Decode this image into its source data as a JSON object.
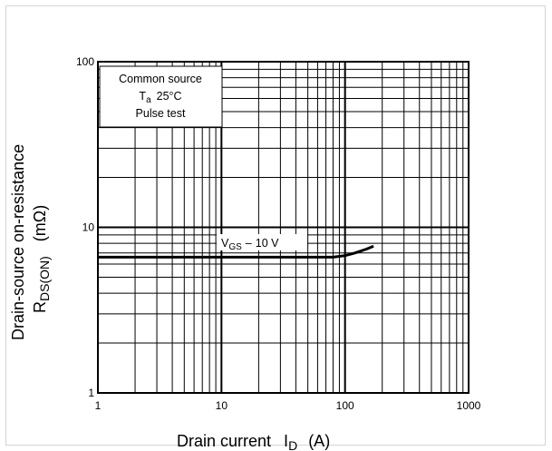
{
  "chart_data": {
    "type": "line",
    "x_scale": "log",
    "y_scale": "log",
    "xlim": [
      1,
      1000
    ],
    "ylim": [
      1,
      100
    ],
    "grid": true,
    "x_ticks": [
      "1",
      "10",
      "100",
      "1000"
    ],
    "y_ticks": [
      "1",
      "10",
      "100"
    ],
    "xlabel": {
      "main": "Drain current",
      "symbol": "I",
      "subscript": "D",
      "unit": "(A)"
    },
    "ylabel": {
      "line1": "Drain-source on-resistance",
      "symbol": "R",
      "subscript": "DS(ON)",
      "unit": "(mΩ)"
    },
    "annotation_box": {
      "line1": "Common source",
      "line2_symbol": "T",
      "line2_sub": "a",
      "line2_value": "25°C",
      "line3": "Pulse test"
    },
    "series": [
      {
        "label_symbol": "V",
        "label_sub": "GS",
        "label_value": "10 V",
        "x": [
          1,
          3,
          10,
          30,
          80,
          100,
          120,
          150,
          170
        ],
        "y": [
          6.6,
          6.6,
          6.6,
          6.6,
          6.6,
          6.75,
          7.0,
          7.4,
          7.7
        ]
      }
    ],
    "colors": {
      "line": "#000000",
      "grid": "#000000",
      "frame": "#d4d4d4"
    }
  }
}
